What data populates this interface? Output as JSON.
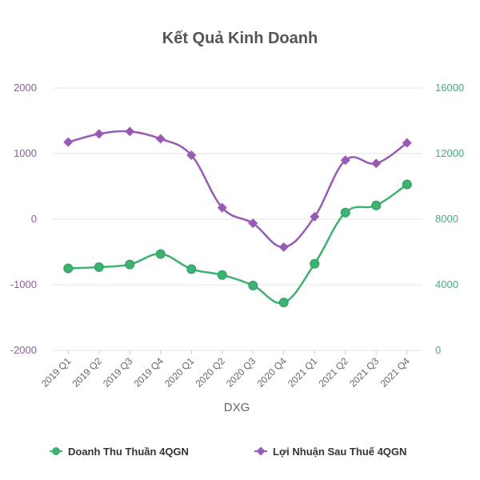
{
  "chart_data": {
    "type": "line",
    "title": "Kết Quả Kinh Doanh",
    "xlabel": "DXG",
    "categories": [
      "2019 Q1",
      "2019 Q2",
      "2019 Q3",
      "2019 Q4",
      "2020 Q1",
      "2020 Q2",
      "2020 Q3",
      "2020 Q4",
      "2021 Q1",
      "2021 Q2",
      "2021 Q3",
      "2021 Q4"
    ],
    "y_left": {
      "min": -2000,
      "max": 2000,
      "ticks": [
        "2000",
        "1000",
        "0",
        "-1000",
        "-2000"
      ],
      "color": "#8e5b9e"
    },
    "y_right": {
      "min": 0,
      "max": 16000,
      "ticks": [
        "16000",
        "12000",
        "8000",
        "4000",
        "0"
      ],
      "color": "#3cb371"
    },
    "series": [
      {
        "name": "Doanh Thu Thuần 4QGN",
        "axis": "left",
        "marker": "circle",
        "color": "#3cb371",
        "values": [
          -750,
          -730,
          -690,
          -530,
          -760,
          -850,
          -1010,
          -1270,
          -680,
          100,
          210,
          530
        ]
      },
      {
        "name": "Lợi Nhuận Sau Thuế 4QGN",
        "axis": "right",
        "marker": "diamond",
        "color": "#9b59b6",
        "values": [
          12700,
          13200,
          13350,
          12900,
          11900,
          8700,
          7750,
          6300,
          8150,
          11600,
          11400,
          12650
        ]
      }
    ],
    "grid": true,
    "legend_position": "bottom"
  }
}
